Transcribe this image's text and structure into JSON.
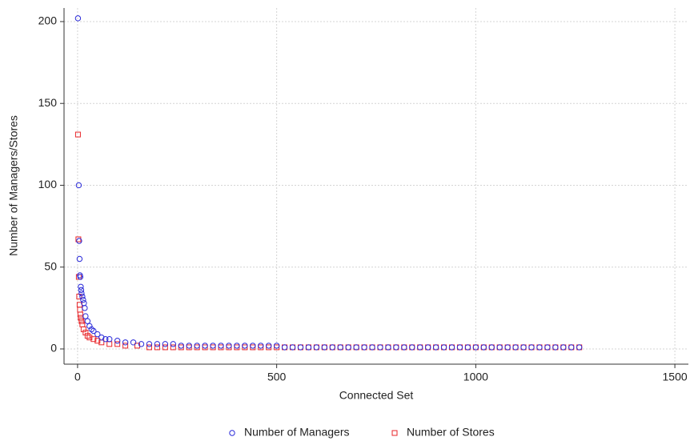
{
  "chart_data": {
    "type": "scatter",
    "x_label": "Connected Set",
    "y_label": "Number of Managers/Stores",
    "xlim": [
      -34,
      1534
    ],
    "ylim": [
      -9.3,
      208.3
    ],
    "xticks": [
      0,
      500,
      1000,
      1500
    ],
    "yticks": [
      0,
      50,
      100,
      150,
      200
    ],
    "grid": true,
    "legend": "bottom",
    "series": [
      {
        "name": "Number of Stores",
        "color": "#e8262a",
        "marker": "square",
        "x": [
          1,
          2,
          3,
          4,
          5,
          6,
          7,
          8,
          10,
          12,
          15,
          20,
          25,
          30,
          40,
          50,
          60,
          80,
          100,
          120,
          150,
          180,
          200,
          220,
          240,
          260,
          280,
          300,
          320,
          340,
          360,
          380,
          400,
          420,
          440,
          460,
          480,
          500,
          520,
          540,
          560,
          580,
          600,
          620,
          640,
          660,
          680,
          700,
          720,
          740,
          760,
          780,
          800,
          820,
          840,
          860,
          880,
          900,
          920,
          940,
          960,
          980,
          1000,
          1020,
          1040,
          1060,
          1080,
          1100,
          1120,
          1140,
          1160,
          1180,
          1200,
          1220,
          1240,
          1260
        ],
        "values": [
          131,
          67,
          44,
          32,
          27,
          24,
          21,
          19,
          17,
          15,
          12,
          10,
          8,
          7,
          6,
          5,
          4,
          3,
          3,
          2,
          2,
          1,
          1,
          1,
          1,
          1,
          1,
          1,
          1,
          1,
          1,
          1,
          1,
          1,
          1,
          1,
          1,
          1,
          1,
          1,
          1,
          1,
          1,
          1,
          1,
          1,
          1,
          1,
          1,
          1,
          1,
          1,
          1,
          1,
          1,
          1,
          1,
          1,
          1,
          1,
          1,
          1,
          1,
          1,
          1,
          1,
          1,
          1,
          1,
          1,
          1,
          1,
          1,
          1,
          1,
          1
        ]
      },
      {
        "name": "Number of Managers",
        "color": "#2b2bd9",
        "marker": "circle",
        "x": [
          1,
          3,
          4,
          5,
          6,
          7,
          8,
          9,
          10,
          12,
          14,
          16,
          18,
          20,
          25,
          30,
          35,
          40,
          50,
          60,
          70,
          80,
          100,
          120,
          140,
          160,
          180,
          200,
          220,
          240,
          260,
          280,
          300,
          320,
          340,
          360,
          380,
          400,
          420,
          440,
          460,
          480,
          500,
          520,
          540,
          560,
          580,
          600,
          620,
          640,
          660,
          680,
          700,
          720,
          740,
          760,
          780,
          800,
          820,
          840,
          860,
          880,
          900,
          920,
          940,
          960,
          980,
          1000,
          1020,
          1040,
          1060,
          1080,
          1100,
          1120,
          1140,
          1160,
          1180,
          1200,
          1220,
          1240,
          1260
        ],
        "values": [
          202,
          100,
          66,
          55,
          45,
          44,
          38,
          36,
          34,
          32,
          30,
          28,
          25,
          20,
          17,
          14,
          12,
          11,
          9,
          7,
          6,
          6,
          5,
          4,
          4,
          3,
          3,
          3,
          3,
          3,
          2,
          2,
          2,
          2,
          2,
          2,
          2,
          2,
          2,
          2,
          2,
          2,
          2,
          1,
          1,
          1,
          1,
          1,
          1,
          1,
          1,
          1,
          1,
          1,
          1,
          1,
          1,
          1,
          1,
          1,
          1,
          1,
          1,
          1,
          1,
          1,
          1,
          1,
          1,
          1,
          1,
          1,
          1,
          1,
          1,
          1,
          1,
          1,
          1,
          1,
          1
        ]
      }
    ]
  }
}
